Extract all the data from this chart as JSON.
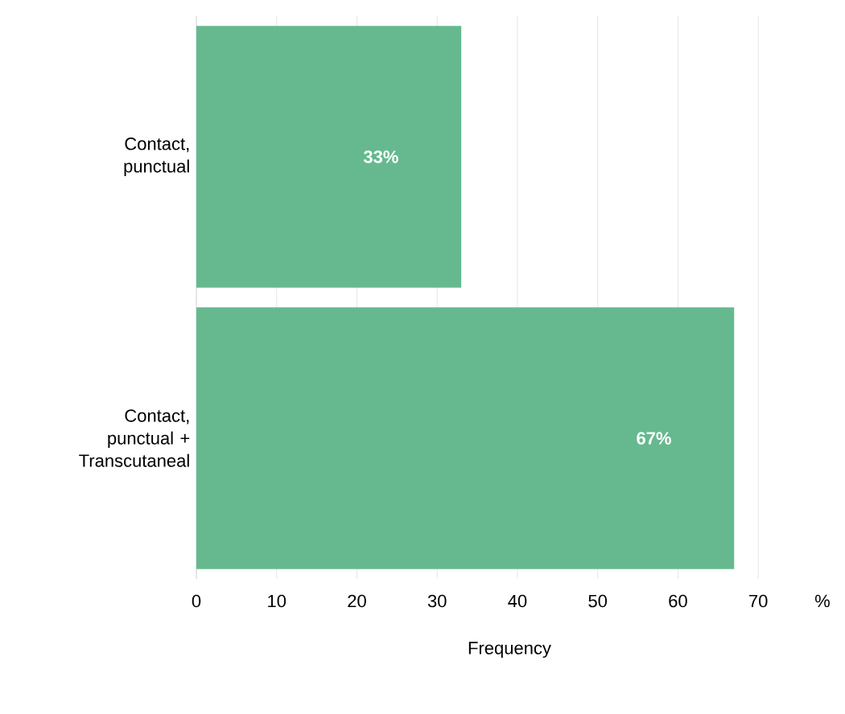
{
  "chart_data": {
    "type": "bar",
    "orientation": "horizontal",
    "categories": [
      "Contact, punctual",
      "Contact, punctual + Transcutaneal"
    ],
    "values": [
      33,
      67
    ],
    "value_labels": [
      "33%",
      "67%"
    ],
    "color": "#66b98f",
    "xlabel": "Frequency",
    "xlim": [
      0,
      78
    ],
    "xticks": [
      0,
      10,
      20,
      30,
      40,
      50,
      60,
      70,
      {
        "value": 78,
        "label": "%"
      }
    ],
    "grid": "x"
  }
}
